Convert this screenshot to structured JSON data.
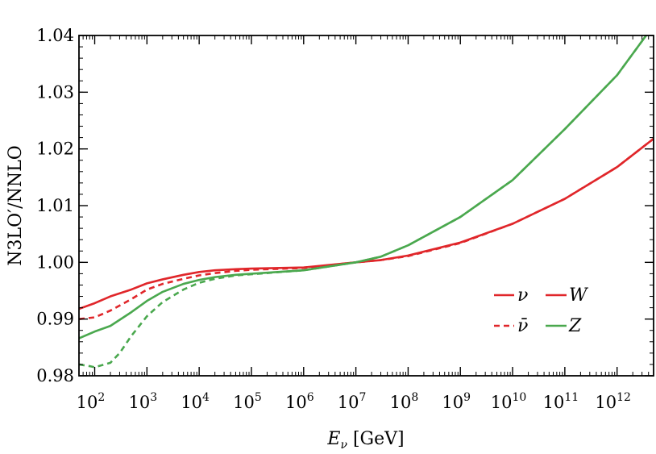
{
  "chart_data": {
    "type": "line",
    "xlabel": "E_ν [GeV]",
    "ylabel": "N3LO′/NNLO",
    "xscale": "log",
    "xlim": [
      50,
      5000000000000
    ],
    "ylim": [
      0.98,
      1.04
    ],
    "grid": false,
    "legend_placement": "lower-right",
    "y_ticks": [
      "0.98",
      "0.99",
      "1.00",
      "1.01",
      "1.02",
      "1.03",
      "1.04"
    ],
    "x_ticks": [
      {
        "base": "10",
        "exp": "2",
        "value": 100
      },
      {
        "base": "10",
        "exp": "3",
        "value": 1000
      },
      {
        "base": "10",
        "exp": "4",
        "value": 10000
      },
      {
        "base": "10",
        "exp": "5",
        "value": 100000
      },
      {
        "base": "10",
        "exp": "6",
        "value": 1000000
      },
      {
        "base": "10",
        "exp": "7",
        "value": 10000000
      },
      {
        "base": "10",
        "exp": "8",
        "value": 100000000
      },
      {
        "base": "10",
        "exp": "9",
        "value": 1000000000
      },
      {
        "base": "10",
        "exp": "10",
        "value": 10000000000
      },
      {
        "base": "10",
        "exp": "11",
        "value": 100000000000
      },
      {
        "base": "10",
        "exp": "12",
        "value": 1000000000000
      }
    ],
    "legend": {
      "style_entries": [
        {
          "label": "ν",
          "dash": "solid"
        },
        {
          "label": "ν̄",
          "dash": "dashed"
        }
      ],
      "color_entries": [
        {
          "label": "W",
          "color": "#e0262a"
        },
        {
          "label": "Z",
          "color": "#4aa84e"
        }
      ]
    },
    "series": [
      {
        "boson": "W",
        "particle": "ν",
        "color": "#e0262a",
        "dash": "solid",
        "points": [
          [
            50,
            0.9918
          ],
          [
            100,
            0.9928
          ],
          [
            200,
            0.994
          ],
          [
            500,
            0.9952
          ],
          [
            1000,
            0.9963
          ],
          [
            2000,
            0.997
          ],
          [
            5000,
            0.9978
          ],
          [
            10000,
            0.9983
          ],
          [
            20000,
            0.9986
          ],
          [
            50000,
            0.9988
          ],
          [
            100000,
            0.9989
          ],
          [
            1000000,
            0.9991
          ],
          [
            10000000,
            1.0
          ],
          [
            30000000,
            1.0004
          ],
          [
            100000000,
            1.0012
          ],
          [
            1000000000,
            1.0035
          ],
          [
            10000000000,
            1.0068
          ],
          [
            100000000000,
            1.0112
          ],
          [
            1000000000000,
            1.0168
          ],
          [
            5000000000000,
            1.0218
          ]
        ]
      },
      {
        "boson": "W",
        "particle": "ν̄",
        "color": "#e0262a",
        "dash": "dashed",
        "points": [
          [
            50,
            0.99
          ],
          [
            100,
            0.9903
          ],
          [
            200,
            0.9915
          ],
          [
            500,
            0.9935
          ],
          [
            1000,
            0.9952
          ],
          [
            2000,
            0.9962
          ],
          [
            5000,
            0.9971
          ],
          [
            10000,
            0.9977
          ],
          [
            20000,
            0.9981
          ],
          [
            50000,
            0.9985
          ],
          [
            100000,
            0.9987
          ],
          [
            1000000,
            0.999
          ],
          [
            10000000,
            1.0
          ],
          [
            30000000,
            1.0004
          ],
          [
            100000000,
            1.0011
          ],
          [
            1000000000,
            1.0034
          ],
          [
            10000000000,
            1.0068
          ],
          [
            100000000000,
            1.0112
          ],
          [
            1000000000000,
            1.0168
          ],
          [
            5000000000000,
            1.0218
          ]
        ]
      },
      {
        "boson": "Z",
        "particle": "ν",
        "color": "#4aa84e",
        "dash": "solid",
        "points": [
          [
            50,
            0.9866
          ],
          [
            100,
            0.9878
          ],
          [
            200,
            0.9888
          ],
          [
            500,
            0.9912
          ],
          [
            1000,
            0.9932
          ],
          [
            2000,
            0.9948
          ],
          [
            5000,
            0.9962
          ],
          [
            10000,
            0.9969
          ],
          [
            20000,
            0.9974
          ],
          [
            50000,
            0.9978
          ],
          [
            100000,
            0.998
          ],
          [
            1000000,
            0.9986
          ],
          [
            10000000,
            1.0
          ],
          [
            30000000,
            1.001
          ],
          [
            100000000,
            1.003
          ],
          [
            1000000000,
            1.008
          ],
          [
            10000000000,
            1.0145
          ],
          [
            100000000000,
            1.0235
          ],
          [
            1000000000000,
            1.033
          ],
          [
            3000000000000,
            1.039
          ],
          [
            5000000000000,
            1.0418
          ]
        ]
      },
      {
        "boson": "Z",
        "particle": "ν̄",
        "color": "#4aa84e",
        "dash": "dashed",
        "points": [
          [
            50,
            0.982
          ],
          [
            80,
            0.9817
          ],
          [
            100,
            0.9815
          ],
          [
            200,
            0.9823
          ],
          [
            300,
            0.984
          ],
          [
            500,
            0.987
          ],
          [
            1000,
            0.9905
          ],
          [
            2000,
            0.993
          ],
          [
            5000,
            0.9952
          ],
          [
            10000,
            0.9964
          ],
          [
            20000,
            0.9971
          ],
          [
            50000,
            0.9977
          ],
          [
            100000,
            0.9979
          ],
          [
            1000000,
            0.9986
          ],
          [
            10000000,
            1.0
          ],
          [
            30000000,
            1.001
          ],
          [
            100000000,
            1.003
          ],
          [
            1000000000,
            1.008
          ],
          [
            10000000000,
            1.0145
          ],
          [
            100000000000,
            1.0235
          ],
          [
            1000000000000,
            1.033
          ],
          [
            3000000000000,
            1.039
          ],
          [
            5000000000000,
            1.0418
          ]
        ]
      }
    ]
  }
}
